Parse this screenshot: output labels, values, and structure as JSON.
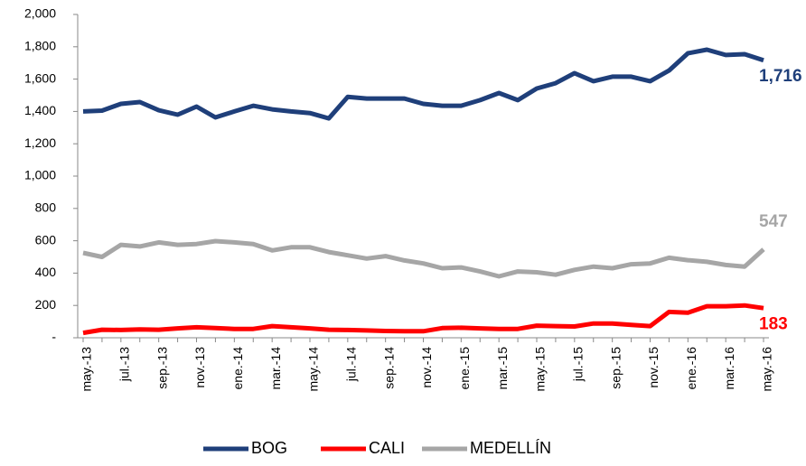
{
  "chart_data": {
    "type": "line",
    "categories": [
      "may.-13",
      null,
      "jul.-13",
      null,
      "sep.-13",
      null,
      "nov.-13",
      null,
      "ene.-14",
      null,
      "mar.-14",
      null,
      "may.-14",
      null,
      "jul.-14",
      null,
      "sep.-14",
      null,
      "nov.-14",
      null,
      "ene.-15",
      null,
      "mar.-15",
      null,
      "may.-15",
      null,
      "jul.-15",
      null,
      "sep.-15",
      null,
      "nov.-15",
      null,
      "ene.-16",
      null,
      "mar.-16",
      null,
      "may.-16"
    ],
    "series": [
      {
        "name": "BOG",
        "color": "#1f3f7a",
        "values": [
          1400,
          1405,
          1447,
          1458,
          1407,
          1380,
          1430,
          1363,
          1400,
          1435,
          1413,
          1400,
          1390,
          1357,
          1490,
          1480,
          1480,
          1480,
          1447,
          1435,
          1435,
          1470,
          1514,
          1470,
          1542,
          1575,
          1637,
          1587,
          1615,
          1615,
          1587,
          1653,
          1760,
          1782,
          1749,
          1754,
          1716
        ],
        "value_labels": [
          null,
          null,
          null,
          null,
          null,
          null,
          null,
          null,
          null,
          null,
          null,
          null,
          null,
          null,
          null,
          null,
          null,
          null,
          null,
          null,
          null,
          null,
          null,
          null,
          null,
          null,
          null,
          null,
          null,
          null,
          null,
          null,
          null,
          null,
          null,
          null,
          "1,716"
        ]
      },
      {
        "name": "CALI",
        "color": "#ff0000",
        "values": [
          30,
          50,
          48,
          52,
          50,
          58,
          65,
          60,
          55,
          55,
          72,
          65,
          58,
          50,
          48,
          45,
          42,
          40,
          40,
          60,
          62,
          58,
          55,
          55,
          75,
          72,
          70,
          88,
          88,
          80,
          72,
          160,
          155,
          195,
          195,
          200,
          183
        ],
        "value_labels": [
          null,
          null,
          null,
          null,
          null,
          null,
          null,
          null,
          null,
          null,
          null,
          null,
          null,
          null,
          null,
          null,
          null,
          null,
          null,
          null,
          null,
          null,
          null,
          null,
          null,
          null,
          null,
          null,
          null,
          null,
          null,
          null,
          null,
          null,
          null,
          null,
          "183"
        ]
      },
      {
        "name": "MEDELLÍN",
        "color": "#a6a6a6",
        "values": [
          525,
          500,
          575,
          565,
          590,
          575,
          580,
          598,
          590,
          580,
          540,
          560,
          560,
          530,
          510,
          490,
          505,
          478,
          460,
          430,
          435,
          410,
          380,
          410,
          405,
          390,
          420,
          440,
          430,
          455,
          460,
          495,
          480,
          470,
          450,
          440,
          547
        ],
        "value_labels": [
          null,
          null,
          null,
          null,
          null,
          null,
          null,
          null,
          null,
          null,
          null,
          null,
          null,
          null,
          null,
          null,
          null,
          null,
          null,
          null,
          null,
          null,
          null,
          null,
          null,
          null,
          null,
          null,
          null,
          null,
          null,
          null,
          null,
          null,
          null,
          null,
          "547"
        ]
      }
    ],
    "ylim": [
      0,
      2000
    ],
    "yticks": [
      {
        "value": 0,
        "label": "-"
      },
      200,
      400,
      600,
      800,
      {
        "value": 1000,
        "label": "1,000"
      },
      {
        "value": 1200,
        "label": "1,200"
      },
      {
        "value": 1400,
        "label": "1,400"
      },
      {
        "value": 1600,
        "label": "1,600"
      },
      {
        "value": 1800,
        "label": "1,800"
      },
      {
        "value": 2000,
        "label": "2,000"
      }
    ],
    "legend": "bottom"
  }
}
